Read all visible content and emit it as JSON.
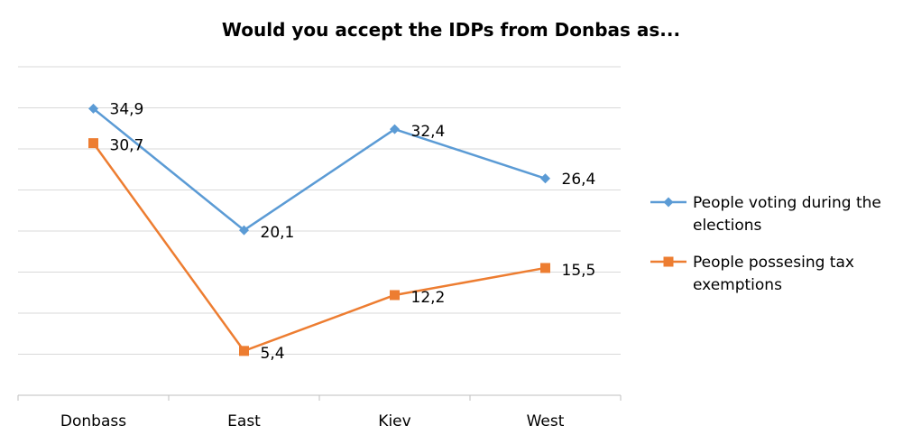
{
  "chart_data": {
    "type": "line",
    "title": "Would you accept the IDPs from Donbas as...",
    "xlabel": "",
    "ylabel": "",
    "categories": [
      "Donbass",
      "East",
      "Kiev",
      "West"
    ],
    "ylim": [
      0,
      40
    ],
    "grid": true,
    "legend_position": "right",
    "series": [
      {
        "name": "People voting during the elections",
        "values": [
          34.9,
          20.1,
          32.4,
          26.4
        ],
        "labels": [
          "34,9",
          "20,1",
          "32,4",
          "26,4"
        ],
        "color": "#5b9bd5",
        "marker": "diamond"
      },
      {
        "name": "People possesing tax exemptions",
        "values": [
          30.7,
          5.4,
          12.2,
          15.5
        ],
        "labels": [
          "30,7",
          "5,4",
          "12,2",
          "15,5"
        ],
        "color": "#ed7d31",
        "marker": "square"
      }
    ],
    "legend": [
      [
        "People voting during the",
        "elections"
      ],
      [
        "People possesing tax",
        "exemptions"
      ]
    ]
  }
}
